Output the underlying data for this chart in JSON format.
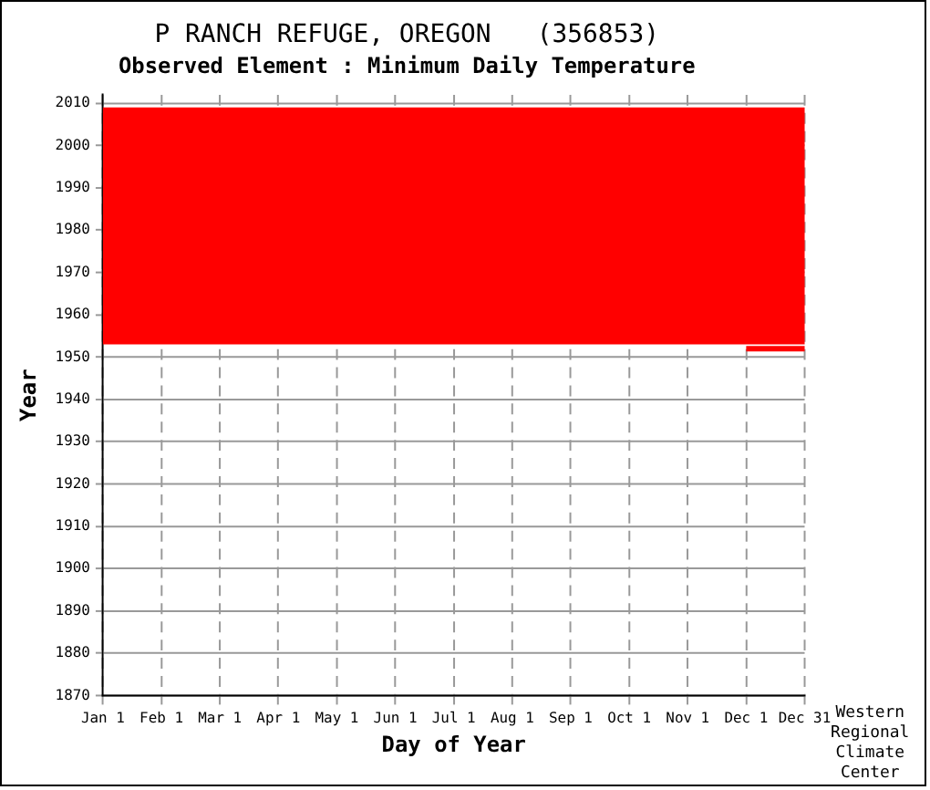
{
  "chart_data": {
    "type": "line",
    "title": "P RANCH REFUGE, OREGON   (356853)",
    "subtitle": "Observed Element : Minimum Daily Temperature",
    "xlabel": "Day of Year",
    "ylabel": "Year",
    "annotations": [
      "Western Regional Climate Center"
    ],
    "categories": [
      "Jan 1",
      "Feb 1",
      "Mar 1",
      "Apr 1",
      "May 1",
      "Jun 1",
      "Jul 1",
      "Aug 1",
      "Sep 1",
      "Oct 1",
      "Nov 1",
      "Dec 1",
      "Dec 31"
    ],
    "series": [
      {
        "color": "#ff0000",
        "values": [
          null,
          null,
          null,
          null,
          null,
          null,
          null,
          null,
          null,
          null,
          null,
          1952,
          1952
        ]
      }
    ],
    "bands": [
      {
        "axis": "y",
        "from": 1953,
        "to": 2009,
        "color": "#ff0000"
      }
    ],
    "ylim": [
      1870,
      2012
    ],
    "yticks": [
      1870,
      1880,
      1890,
      1900,
      1910,
      1920,
      1930,
      1940,
      1950,
      1960,
      1970,
      1980,
      1990,
      2000,
      2010
    ],
    "grid": true,
    "legend": false,
    "marker": "none"
  }
}
